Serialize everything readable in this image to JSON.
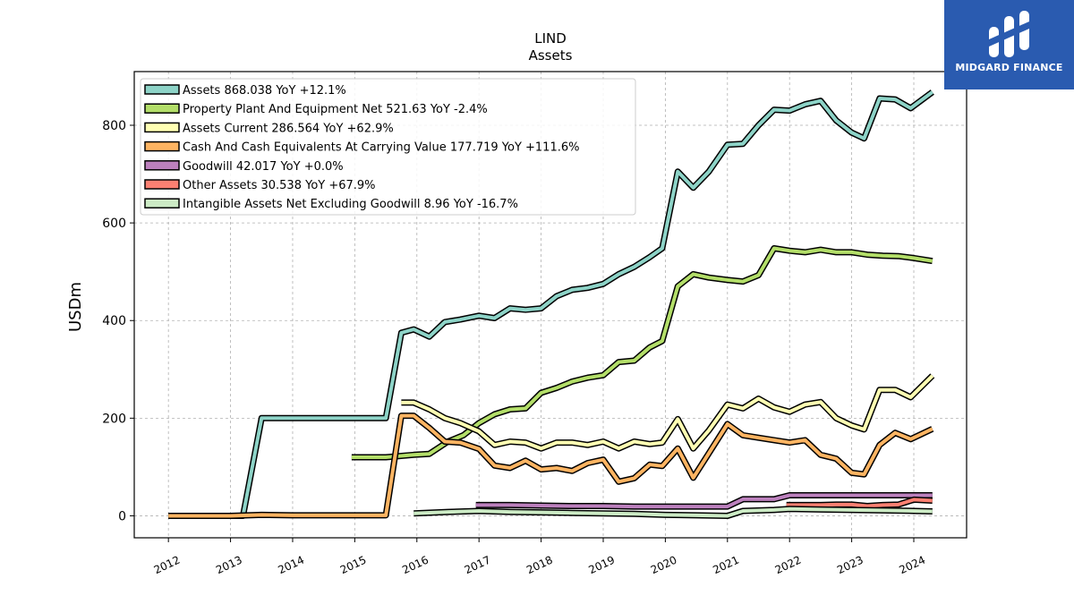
{
  "brand": {
    "name": "MIDGARD FINANCE",
    "bg_color": "#2a5bb0"
  },
  "chart_data": {
    "type": "line",
    "title": "LIND",
    "subtitle": "Assets",
    "xlabel": "",
    "ylabel": "USDm",
    "xlim": [
      2011.45,
      2024.85
    ],
    "ylim": [
      -45,
      910
    ],
    "x_ticks": [
      "2012",
      "2013",
      "2014",
      "2015",
      "2016",
      "2017",
      "2018",
      "2019",
      "2020",
      "2021",
      "2022",
      "2023",
      "2024"
    ],
    "y_ticks": [
      0,
      200,
      400,
      600,
      800
    ],
    "grid": true,
    "legend_position": "top-left",
    "series": [
      {
        "name": "Assets  868.038 YoY +12.1%",
        "color": "#8dd3c7",
        "points": [
          [
            2012.0,
            0
          ],
          [
            2013.2,
            0
          ],
          [
            2013.5,
            200
          ],
          [
            2014.0,
            200
          ],
          [
            2014.5,
            200
          ],
          [
            2015.0,
            200
          ],
          [
            2015.5,
            200
          ],
          [
            2015.75,
            375
          ],
          [
            2015.95,
            382
          ],
          [
            2016.2,
            367
          ],
          [
            2016.45,
            397
          ],
          [
            2016.7,
            402
          ],
          [
            2017.0,
            410
          ],
          [
            2017.25,
            405
          ],
          [
            2017.5,
            425
          ],
          [
            2017.75,
            422
          ],
          [
            2018.0,
            425
          ],
          [
            2018.25,
            450
          ],
          [
            2018.5,
            463
          ],
          [
            2018.75,
            467
          ],
          [
            2019.0,
            475
          ],
          [
            2019.25,
            495
          ],
          [
            2019.5,
            510
          ],
          [
            2019.75,
            530
          ],
          [
            2019.95,
            548
          ],
          [
            2020.2,
            705
          ],
          [
            2020.45,
            672
          ],
          [
            2020.7,
            705
          ],
          [
            2021.0,
            760
          ],
          [
            2021.25,
            762
          ],
          [
            2021.5,
            800
          ],
          [
            2021.75,
            832
          ],
          [
            2022.0,
            830
          ],
          [
            2022.25,
            843
          ],
          [
            2022.5,
            850
          ],
          [
            2022.75,
            810
          ],
          [
            2023.0,
            785
          ],
          [
            2023.2,
            773
          ],
          [
            2023.45,
            855
          ],
          [
            2023.7,
            853
          ],
          [
            2023.95,
            835
          ],
          [
            2024.3,
            868
          ]
        ]
      },
      {
        "name": "Property Plant And Equipment Net  521.63 YoY -2.4%",
        "color": "#b3de69",
        "points": [
          [
            2014.95,
            120
          ],
          [
            2015.5,
            120
          ],
          [
            2015.95,
            125
          ],
          [
            2016.2,
            127
          ],
          [
            2016.5,
            152
          ],
          [
            2016.75,
            165
          ],
          [
            2017.0,
            190
          ],
          [
            2017.25,
            208
          ],
          [
            2017.5,
            218
          ],
          [
            2017.75,
            220
          ],
          [
            2018.0,
            252
          ],
          [
            2018.25,
            262
          ],
          [
            2018.5,
            275
          ],
          [
            2018.75,
            283
          ],
          [
            2019.0,
            288
          ],
          [
            2019.25,
            315
          ],
          [
            2019.5,
            318
          ],
          [
            2019.75,
            345
          ],
          [
            2019.95,
            358
          ],
          [
            2020.2,
            470
          ],
          [
            2020.45,
            495
          ],
          [
            2020.7,
            488
          ],
          [
            2021.0,
            483
          ],
          [
            2021.25,
            480
          ],
          [
            2021.5,
            493
          ],
          [
            2021.75,
            548
          ],
          [
            2022.0,
            543
          ],
          [
            2022.25,
            540
          ],
          [
            2022.5,
            545
          ],
          [
            2022.75,
            540
          ],
          [
            2023.0,
            540
          ],
          [
            2023.25,
            535
          ],
          [
            2023.5,
            533
          ],
          [
            2023.75,
            532
          ],
          [
            2024.0,
            528
          ],
          [
            2024.3,
            522
          ]
        ]
      },
      {
        "name": "Assets Current  286.564 YoY +62.9%",
        "color": "#ffffb3",
        "points": [
          [
            2015.75,
            232
          ],
          [
            2015.95,
            232
          ],
          [
            2016.2,
            218
          ],
          [
            2016.45,
            200
          ],
          [
            2016.7,
            190
          ],
          [
            2017.0,
            173
          ],
          [
            2017.25,
            145
          ],
          [
            2017.5,
            152
          ],
          [
            2017.75,
            150
          ],
          [
            2018.0,
            138
          ],
          [
            2018.25,
            150
          ],
          [
            2018.5,
            150
          ],
          [
            2018.75,
            145
          ],
          [
            2019.0,
            152
          ],
          [
            2019.25,
            138
          ],
          [
            2019.5,
            152
          ],
          [
            2019.75,
            147
          ],
          [
            2019.95,
            150
          ],
          [
            2020.2,
            198
          ],
          [
            2020.45,
            138
          ],
          [
            2020.7,
            175
          ],
          [
            2021.0,
            228
          ],
          [
            2021.25,
            220
          ],
          [
            2021.5,
            240
          ],
          [
            2021.75,
            222
          ],
          [
            2022.0,
            213
          ],
          [
            2022.25,
            228
          ],
          [
            2022.5,
            233
          ],
          [
            2022.75,
            200
          ],
          [
            2023.0,
            185
          ],
          [
            2023.2,
            177
          ],
          [
            2023.45,
            258
          ],
          [
            2023.7,
            258
          ],
          [
            2023.95,
            243
          ],
          [
            2024.3,
            287
          ]
        ]
      },
      {
        "name": "Cash And Cash Equivalents At Carrying Value  177.719 YoY +111.6%",
        "color": "#fdb462",
        "points": [
          [
            2012.0,
            0
          ],
          [
            2013.0,
            0
          ],
          [
            2013.5,
            2
          ],
          [
            2014.0,
            1
          ],
          [
            2014.5,
            1
          ],
          [
            2015.0,
            1
          ],
          [
            2015.5,
            1
          ],
          [
            2015.75,
            205
          ],
          [
            2015.95,
            205
          ],
          [
            2016.2,
            180
          ],
          [
            2016.45,
            152
          ],
          [
            2016.7,
            150
          ],
          [
            2017.0,
            137
          ],
          [
            2017.25,
            103
          ],
          [
            2017.5,
            98
          ],
          [
            2017.75,
            113
          ],
          [
            2018.0,
            95
          ],
          [
            2018.25,
            98
          ],
          [
            2018.5,
            92
          ],
          [
            2018.75,
            108
          ],
          [
            2019.0,
            115
          ],
          [
            2019.25,
            70
          ],
          [
            2019.5,
            77
          ],
          [
            2019.75,
            105
          ],
          [
            2019.95,
            102
          ],
          [
            2020.2,
            138
          ],
          [
            2020.45,
            78
          ],
          [
            2020.7,
            128
          ],
          [
            2021.0,
            188
          ],
          [
            2021.25,
            165
          ],
          [
            2021.5,
            160
          ],
          [
            2021.75,
            155
          ],
          [
            2022.0,
            150
          ],
          [
            2022.25,
            155
          ],
          [
            2022.5,
            125
          ],
          [
            2022.75,
            117
          ],
          [
            2023.0,
            88
          ],
          [
            2023.2,
            85
          ],
          [
            2023.45,
            145
          ],
          [
            2023.7,
            170
          ],
          [
            2023.95,
            157
          ],
          [
            2024.3,
            178
          ]
        ]
      },
      {
        "name": "Goodwill  42.017 YoY +0.0%",
        "color": "#bc80bd",
        "points": [
          [
            2016.95,
            22
          ],
          [
            2017.5,
            22
          ],
          [
            2018.0,
            21
          ],
          [
            2018.5,
            20
          ],
          [
            2019.0,
            20
          ],
          [
            2019.5,
            19
          ],
          [
            2020.0,
            19
          ],
          [
            2020.5,
            19
          ],
          [
            2021.0,
            19
          ],
          [
            2021.25,
            34
          ],
          [
            2021.75,
            34
          ],
          [
            2022.0,
            42
          ],
          [
            2022.5,
            42
          ],
          [
            2023.0,
            42
          ],
          [
            2023.5,
            42
          ],
          [
            2024.0,
            42
          ],
          [
            2024.3,
            42
          ]
        ]
      },
      {
        "name": "Other Assets  30.538 YoY +67.9%",
        "color": "#fb8072",
        "points": [
          [
            2021.95,
            22
          ],
          [
            2022.25,
            22
          ],
          [
            2022.5,
            22
          ],
          [
            2022.75,
            23
          ],
          [
            2023.0,
            23
          ],
          [
            2023.25,
            20
          ],
          [
            2023.5,
            22
          ],
          [
            2023.75,
            23
          ],
          [
            2024.0,
            33
          ],
          [
            2024.3,
            31
          ]
        ]
      },
      {
        "name": "Intangible Assets Net Excluding Goodwill  8.96 YoY -16.7%",
        "color": "#ccebc5",
        "points": [
          [
            2015.95,
            5
          ],
          [
            2016.5,
            8
          ],
          [
            2017.0,
            10
          ],
          [
            2017.5,
            8
          ],
          [
            2018.0,
            7
          ],
          [
            2018.5,
            6
          ],
          [
            2019.0,
            5
          ],
          [
            2019.5,
            4
          ],
          [
            2020.0,
            2
          ],
          [
            2020.5,
            1
          ],
          [
            2021.0,
            0
          ],
          [
            2021.25,
            10
          ],
          [
            2021.75,
            12
          ],
          [
            2022.0,
            14
          ],
          [
            2022.5,
            13
          ],
          [
            2023.0,
            12
          ],
          [
            2023.5,
            11
          ],
          [
            2024.0,
            10
          ],
          [
            2024.3,
            9
          ]
        ]
      }
    ]
  }
}
